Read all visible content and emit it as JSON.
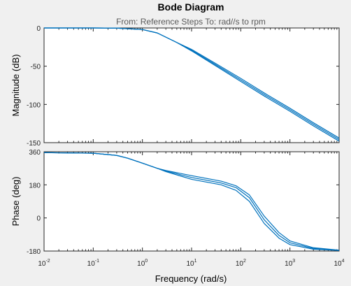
{
  "chart_data": {
    "type": "line",
    "title": "Bode Diagram",
    "subtitle": "From: Reference Steps  To: rad//s to rpm",
    "xlabel": "Frequency  (rad/s)",
    "xscale": "log",
    "xlim": [
      0.01,
      10000
    ],
    "xticks": [
      {
        "value": 0.01,
        "mantissa": "10",
        "exp": "-2"
      },
      {
        "value": 0.1,
        "mantissa": "10",
        "exp": "-1"
      },
      {
        "value": 1,
        "mantissa": "10",
        "exp": "0"
      },
      {
        "value": 10,
        "mantissa": "10",
        "exp": "1"
      },
      {
        "value": 100,
        "mantissa": "10",
        "exp": "2"
      },
      {
        "value": 1000,
        "mantissa": "10",
        "exp": "3"
      },
      {
        "value": 10000,
        "mantissa": "10",
        "exp": "4"
      }
    ],
    "line_color": "#0072bd",
    "grid": false,
    "panels": {
      "magnitude": {
        "ylabel": "Magnitude (dB)",
        "ylim": [
          -150,
          0
        ],
        "yticks": [
          "0",
          "-50",
          "-100",
          "-150"
        ],
        "yticks_values": [
          0,
          -50,
          -100,
          -150
        ],
        "series": [
          {
            "x": [
              0.01,
              0.1,
              0.3,
              1,
              2,
              3,
              5,
              10,
              30,
              100,
              300,
              1000,
              3000,
              10000
            ],
            "y": [
              0,
              0,
              -0.2,
              -2,
              -6.5,
              -12,
              -19,
              -30,
              -49,
              -70,
              -89,
              -109,
              -128,
              -148
            ]
          },
          {
            "x": [
              0.01,
              0.1,
              0.3,
              1,
              2,
              3,
              5,
              10,
              30,
              100,
              300,
              1000,
              3000,
              10000
            ],
            "y": [
              0,
              0,
              -0.2,
              -2,
              -6.5,
              -12,
              -19,
              -29,
              -47.5,
              -68,
              -87,
              -107,
              -126,
              -146
            ]
          },
          {
            "x": [
              0.01,
              0.1,
              0.3,
              1,
              2,
              3,
              5,
              10,
              30,
              100,
              300,
              1000,
              3000,
              10000
            ],
            "y": [
              0,
              0,
              -0.2,
              -2,
              -6.5,
              -12,
              -19,
              -28,
              -46,
              -66,
              -85,
              -105,
              -124,
              -144
            ]
          }
        ]
      },
      "phase": {
        "ylabel": "Phase (deg)",
        "ylim": [
          -180,
          360
        ],
        "yticks": [
          "360",
          "180",
          "0",
          "-180"
        ],
        "yticks_values": [
          360,
          180,
          0,
          -180
        ],
        "series": [
          {
            "x": [
              0.01,
              0.1,
              0.3,
              0.5,
              1,
              2,
              3,
              10,
              40,
              80,
              150,
              300,
              600,
              1000,
              3000,
              10000
            ],
            "y": [
              355,
              352,
              340,
              325,
              298,
              270,
              252,
              210,
              180,
              150,
              90,
              -30,
              -110,
              -145,
              -170,
              -177
            ]
          },
          {
            "x": [
              0.01,
              0.1,
              0.3,
              0.5,
              1,
              2,
              3,
              10,
              40,
              80,
              150,
              300,
              600,
              1000,
              3000,
              10000
            ],
            "y": [
              355,
              352,
              340,
              325,
              298,
              270,
              255,
              220,
              190,
              165,
              110,
              -10,
              -95,
              -135,
              -166,
              -176
            ]
          },
          {
            "x": [
              0.01,
              0.1,
              0.3,
              0.5,
              1,
              2,
              3,
              10,
              40,
              80,
              150,
              300,
              600,
              1000,
              3000,
              10000
            ],
            "y": [
              355,
              352,
              340,
              325,
              298,
              270,
              258,
              230,
              200,
              175,
              125,
              10,
              -80,
              -125,
              -162,
              -175
            ]
          }
        ]
      }
    }
  }
}
